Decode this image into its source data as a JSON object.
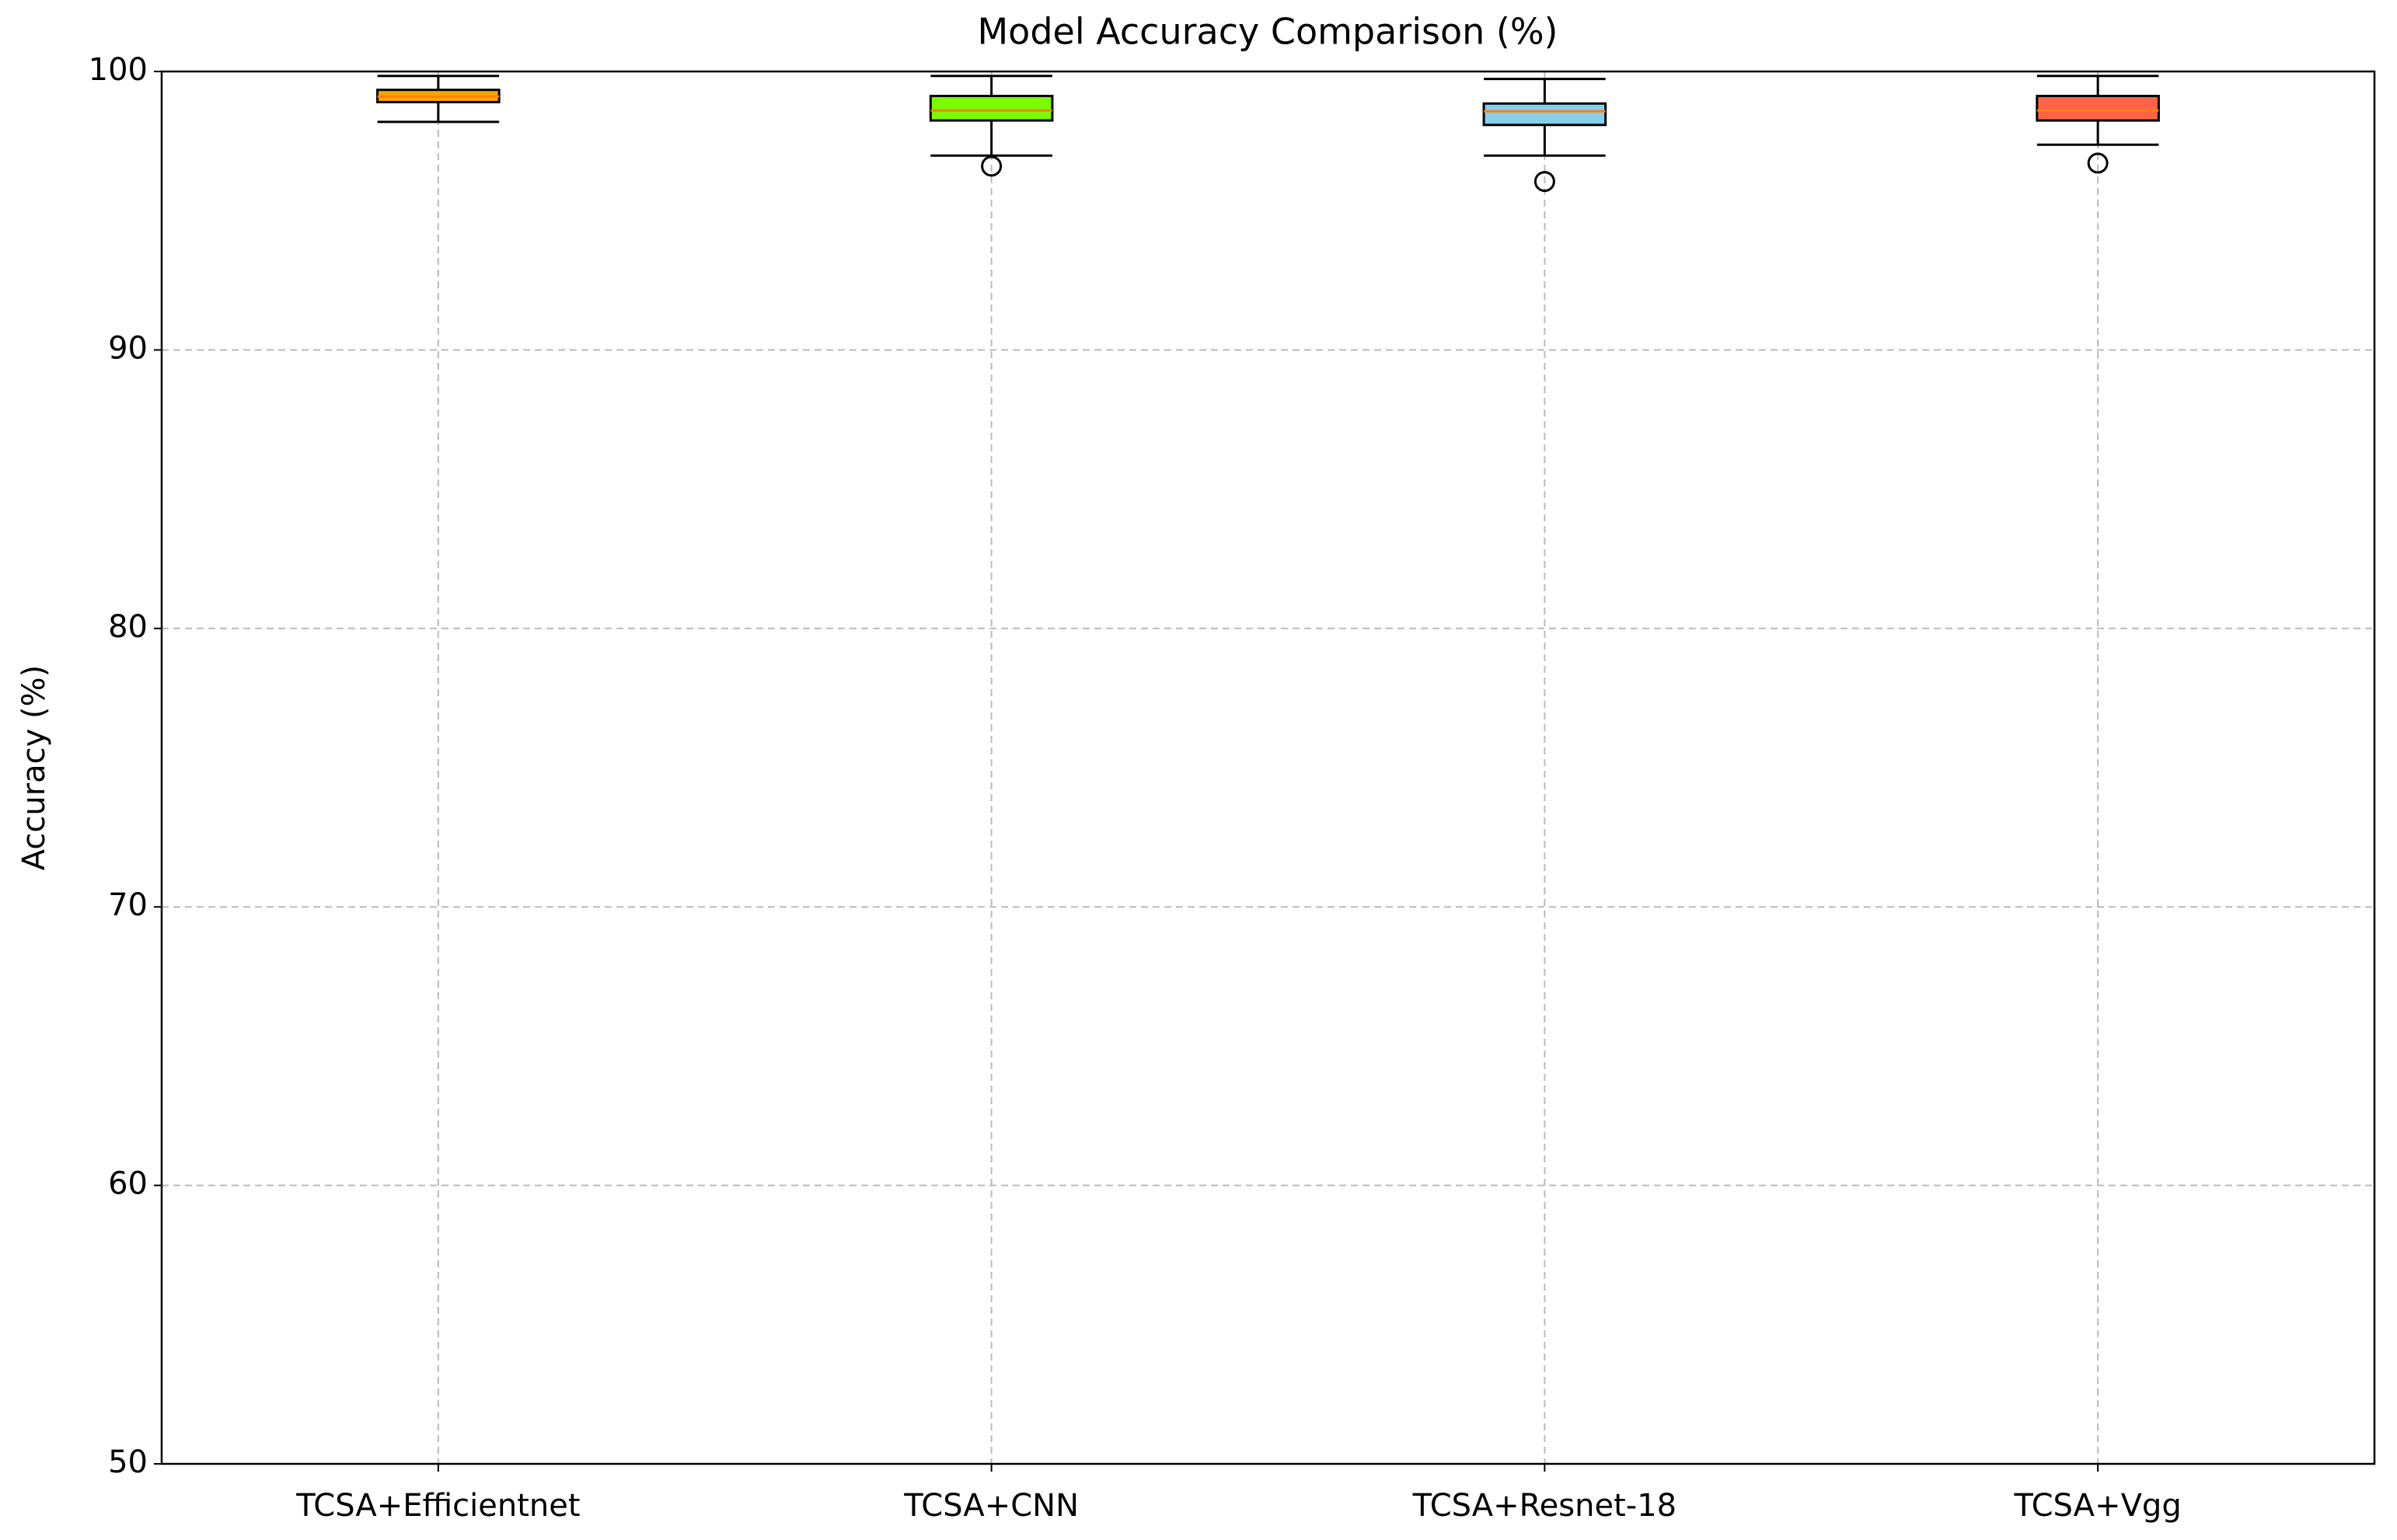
{
  "chart_data": {
    "type": "box",
    "title": "Model Accuracy Comparison (%)",
    "ylabel": "Accuracy (%)",
    "categories": [
      "TCSA+Efficientnet",
      "TCSA+CNN",
      "TCSA+Resnet-18",
      "TCSA+Vgg"
    ],
    "colors": [
      "#FFA500",
      "#7CFC00",
      "#87CEEB",
      "#FF6347"
    ],
    "median_color": "#ff7f0e",
    "boxes": [
      {
        "whislo": 98.19,
        "q1": 98.9,
        "med": 99.1,
        "q3": 99.34,
        "whishi": 99.84,
        "fliers": []
      },
      {
        "whislo": 96.98,
        "q1": 98.24,
        "med": 98.6,
        "q3": 99.12,
        "whishi": 99.84,
        "fliers": [
          96.6
        ]
      },
      {
        "whislo": 96.98,
        "q1": 98.08,
        "med": 98.57,
        "q3": 98.85,
        "whishi": 99.73,
        "fliers": [
          96.05
        ]
      },
      {
        "whislo": 97.37,
        "q1": 98.24,
        "med": 98.6,
        "q3": 99.12,
        "whishi": 99.84,
        "fliers": [
          96.71
        ]
      }
    ],
    "ylim": [
      50,
      100
    ],
    "yticks": [
      50,
      60,
      70,
      80,
      90,
      100
    ],
    "grid": true
  }
}
